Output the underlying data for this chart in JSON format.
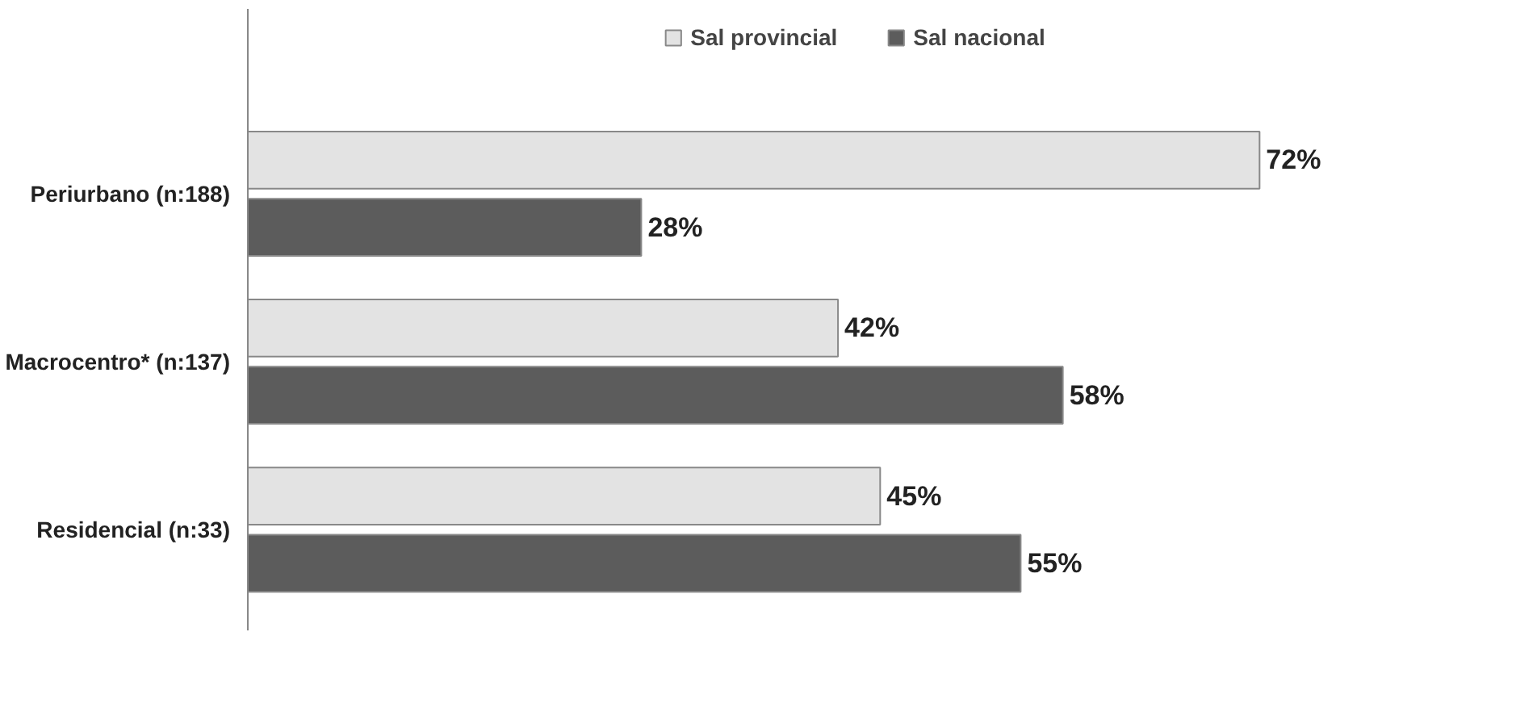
{
  "chart_data": {
    "type": "bar",
    "orientation": "horizontal",
    "categories": [
      "Periurbano (n:188)",
      "Macrocentro* (n:137)",
      "Residencial (n:33)"
    ],
    "series": [
      {
        "name": "Sal provincial",
        "color": "#e3e3e3",
        "values": [
          72,
          42,
          45
        ],
        "value_labels": [
          "72%",
          "42%",
          "45%"
        ]
      },
      {
        "name": "Sal nacional",
        "color": "#5c5c5c",
        "values": [
          28,
          58,
          55
        ],
        "value_labels": [
          "28%",
          "58%",
          "55%"
        ]
      }
    ],
    "legend": "top",
    "tick_labels": "y"
  }
}
